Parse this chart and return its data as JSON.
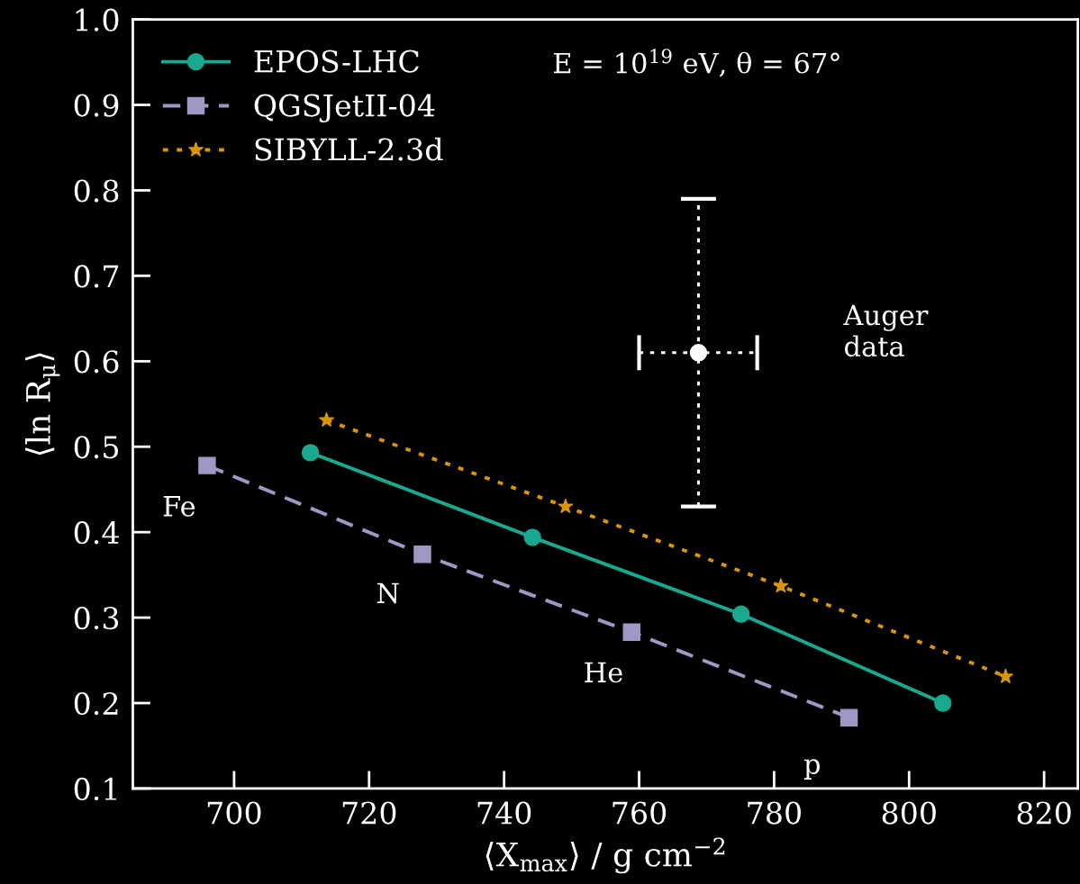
{
  "chart_data": {
    "type": "line",
    "xlabel": "⟨X$_{max}$⟩ / g cm$^{−2}$",
    "ylabel": "⟨ln R$_{μ}$⟩",
    "xlim": [
      685,
      825
    ],
    "xticks": [
      700,
      720,
      740,
      760,
      780,
      800,
      820
    ],
    "ylim": [
      0.1,
      1.0
    ],
    "yticks": [
      0.1,
      0.2,
      0.3,
      0.4,
      0.5,
      0.6,
      0.7,
      0.8,
      0.9,
      {
        "value": 1.0,
        "label": "1.0"
      }
    ],
    "grid": false,
    "legend": "top left",
    "series": [
      {
        "name": "EPOS-LHC",
        "color": "#1aa88f",
        "marker": "circle",
        "line_style": "solid",
        "x": [
          711.3,
          744.2,
          775.1,
          805.0
        ],
        "values": [
          0.493,
          0.394,
          0.304,
          0.2
        ]
      },
      {
        "name": "QGSJetII-04",
        "color": "#9d98c4",
        "marker": "square",
        "line_style": "dashed",
        "x": [
          696.0,
          727.9,
          758.9,
          791.1
        ],
        "values": [
          0.478,
          0.374,
          0.283,
          0.183
        ]
      },
      {
        "name": "SIBYLL-2.3d",
        "color": "#d7950e",
        "marker": "star",
        "line_style": "dotted",
        "x": [
          713.7,
          749.1,
          781.0,
          814.3
        ],
        "values": [
          0.531,
          0.43,
          0.337,
          0.231
        ]
      },
      {
        "type": "scatter",
        "color": "#ffffff",
        "marker": "circle",
        "line_style": "dotted",
        "x": [
          768.8
        ],
        "values": [
          0.61
        ],
        "errors": [
          [
            0.43,
            0.79
          ]
        ],
        "xerrors": [
          [
            760.0,
            777.5
          ]
        ]
      }
    ],
    "annotations": [
      "E = 10$^{19}$ eV, θ = 67°",
      "Auger\ndata",
      "Fe",
      "N",
      "He",
      "p"
    ]
  }
}
